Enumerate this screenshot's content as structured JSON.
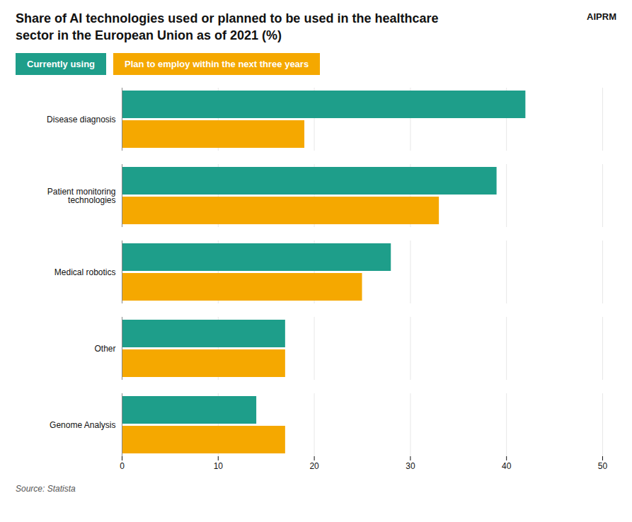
{
  "chart_data": {
    "type": "bar",
    "orientation": "horizontal",
    "title": "Share of AI technologies used or planned to be used in the healthcare\nsector in the European Union as of 2021 (%)",
    "caption": "Source: Statista",
    "annotations": [
      "AIPRM"
    ],
    "categories": [
      "Disease diagnosis",
      "Patient monitoring\ntechnologies",
      "Medical robotics",
      "Other",
      "Genome Analysis"
    ],
    "series": [
      {
        "name": "Currently using",
        "color": "#1e9e8a",
        "values": [
          42,
          39,
          28,
          17,
          14
        ]
      },
      {
        "name": "Plan to employ within the next three years",
        "color": "#f5a800",
        "values": [
          19,
          33,
          25,
          17,
          17
        ]
      }
    ],
    "xlim": [
      0,
      50
    ],
    "xticks": [
      0,
      10,
      20,
      30,
      40,
      50
    ],
    "grid": true,
    "legend": "top"
  }
}
